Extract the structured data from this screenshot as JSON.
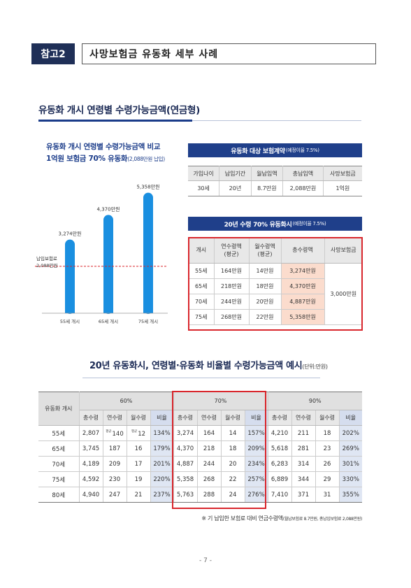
{
  "header": {
    "tag": "참고2",
    "title": "사망보험금 유동화 세부 사례"
  },
  "section_title": "유동화 개시 연령별 수령가능금액(연금형)",
  "chart": {
    "title_line1": "유동화 개시 연령별 수령가능금액 비교",
    "title_line2_main": "1억원 보험금 70% 유동화",
    "title_line2_note": "(2,088만원 납입)",
    "reference_label_line1": "납입보험료",
    "reference_label_line2": "2,088만원",
    "bar_labels": [
      "3,274만원",
      "4,370만원",
      "5,358만원"
    ]
  },
  "chart_data": {
    "type": "bar",
    "categories": [
      "55세 개시",
      "65세 개시",
      "75세 개시"
    ],
    "values": [
      3274,
      4370,
      5358
    ],
    "reference_line": 2088,
    "ylim": [
      0,
      6000
    ]
  },
  "table1": {
    "title_main": "유동화 대상 보험계약",
    "title_note": "(예정이율 7.5%)",
    "headers": [
      "가입나이",
      "납입기간",
      "월납입액",
      "총납입액",
      "사망보험금"
    ],
    "row": [
      "30세",
      "20년",
      "8.7만원",
      "2,088만원",
      "1억원"
    ]
  },
  "table2": {
    "title_main": "20년 수령 70% 유동화시",
    "title_note": "(예정이율 7.5%)",
    "headers": [
      "개시",
      "연수령액\n(평균)",
      "월수령액\n(평균)",
      "총수령액",
      "사망보험금"
    ],
    "rows": [
      [
        "55세",
        "164만원",
        "14만원",
        "3,274만원"
      ],
      [
        "65세",
        "218만원",
        "18만원",
        "4,370만원"
      ],
      [
        "70세",
        "244만원",
        "20만원",
        "4,887만원"
      ],
      [
        "75세",
        "268만원",
        "22만원",
        "5,358만원"
      ]
    ],
    "death_benefit": "3,000만원"
  },
  "table3": {
    "title_main": "20년 유동화시, 연령별·유동화 비율별 수령가능금액 예시",
    "title_note": "(단위:만원)",
    "row_header": "유동화 개시",
    "groups": [
      "60%",
      "70%",
      "90%"
    ],
    "subheaders": [
      "총수령",
      "연수령",
      "월수령",
      "비율"
    ],
    "sup_yearly": "평균",
    "sup_monthly": "평균",
    "rows": [
      {
        "age": "55세",
        "cells": [
          "2,807",
          "140",
          "12",
          "134%",
          "3,274",
          "164",
          "14",
          "157%",
          "4,210",
          "211",
          "18",
          "202%"
        ]
      },
      {
        "age": "65세",
        "cells": [
          "3,745",
          "187",
          "16",
          "179%",
          "4,370",
          "218",
          "18",
          "209%",
          "5,618",
          "281",
          "23",
          "269%"
        ]
      },
      {
        "age": "70세",
        "cells": [
          "4,189",
          "209",
          "17",
          "201%",
          "4,887",
          "244",
          "20",
          "234%",
          "6,283",
          "314",
          "26",
          "301%"
        ]
      },
      {
        "age": "75세",
        "cells": [
          "4,592",
          "230",
          "19",
          "220%",
          "5,358",
          "268",
          "22",
          "257%",
          "6,889",
          "344",
          "29",
          "330%"
        ]
      },
      {
        "age": "80세",
        "cells": [
          "4,940",
          "247",
          "21",
          "237%",
          "5,763",
          "288",
          "24",
          "276%",
          "7,410",
          "371",
          "31",
          "355%"
        ]
      }
    ]
  },
  "footnote": {
    "main": "※ 기 납입한 보험료 대비 연금수령액",
    "note": "(월납보험료 8.7만원, 총납입보험료 2,088만원)"
  },
  "page_number": "- 7 -",
  "colors": {
    "navy": "#1f2f57",
    "bar_blue": "#1a8fe0",
    "reference_red": "#d9262c",
    "highlight_peach": "#fbdccd",
    "ratio_blue": "#dfe6f3"
  }
}
